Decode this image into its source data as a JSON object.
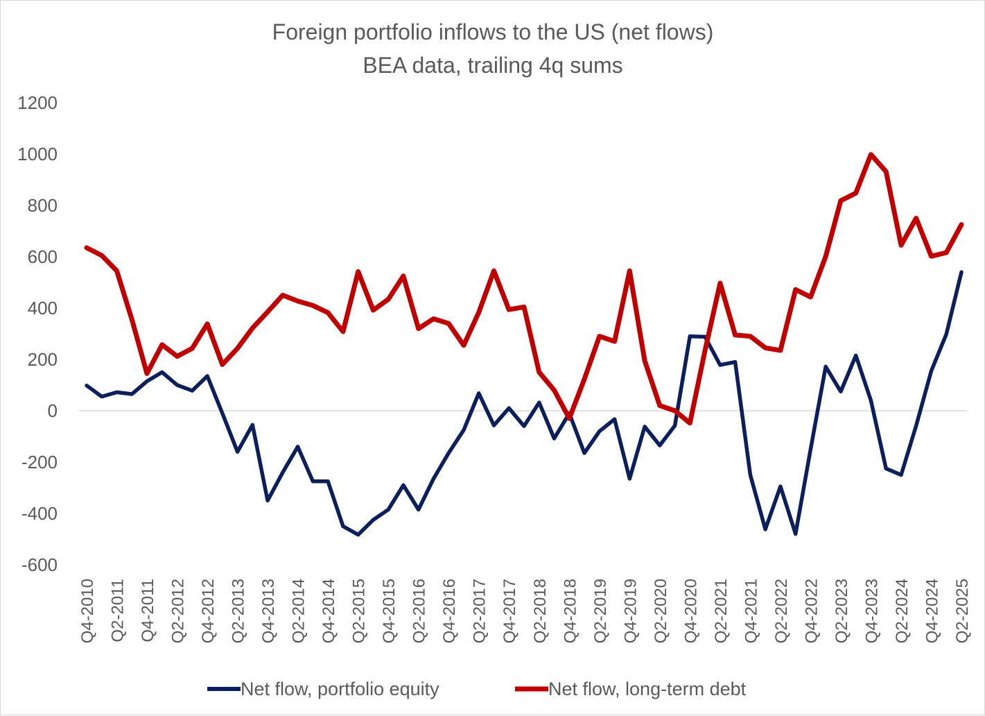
{
  "chart_data": {
    "type": "line",
    "title": "Foreign portfolio inflows to the US (net flows)",
    "subtitle": "BEA data, trailing 4q sums",
    "xlabel": "",
    "ylabel": "",
    "ylim": [
      -600,
      1200
    ],
    "y_ticks": [
      1200,
      1000,
      800,
      600,
      400,
      200,
      0,
      -200,
      -400,
      -600
    ],
    "x_tick_labels": [
      "Q4-2010",
      "Q2-2011",
      "Q4-2011",
      "Q2-2012",
      "Q4-2012",
      "Q2-2013",
      "Q4-2013",
      "Q2-2014",
      "Q4-2014",
      "Q2-2015",
      "Q4-2015",
      "Q2-2016",
      "Q4-2016",
      "Q2-2017",
      "Q4-2017",
      "Q2-2018",
      "Q4-2018",
      "Q2-2019",
      "Q4-2019",
      "Q2-2020",
      "Q4-2020",
      "Q2-2021",
      "Q4-2021",
      "Q2-2022",
      "Q4-2022",
      "Q2-2023",
      "Q4-2023",
      "Q2-2024",
      "Q4-2024",
      "Q2-2025"
    ],
    "x": [
      "Q4-2010",
      "Q1-2011",
      "Q2-2011",
      "Q3-2011",
      "Q4-2011",
      "Q1-2012",
      "Q2-2012",
      "Q3-2012",
      "Q4-2012",
      "Q1-2013",
      "Q2-2013",
      "Q3-2013",
      "Q4-2013",
      "Q1-2014",
      "Q2-2014",
      "Q3-2014",
      "Q4-2014",
      "Q1-2015",
      "Q2-2015",
      "Q3-2015",
      "Q4-2015",
      "Q1-2016",
      "Q2-2016",
      "Q3-2016",
      "Q4-2016",
      "Q1-2017",
      "Q2-2017",
      "Q3-2017",
      "Q4-2017",
      "Q1-2018",
      "Q2-2018",
      "Q3-2018",
      "Q4-2018",
      "Q1-2019",
      "Q2-2019",
      "Q3-2019",
      "Q4-2019",
      "Q1-2020",
      "Q2-2020",
      "Q3-2020",
      "Q4-2020",
      "Q1-2021",
      "Q2-2021",
      "Q3-2021",
      "Q4-2021",
      "Q1-2022",
      "Q2-2022",
      "Q3-2022",
      "Q4-2022",
      "Q1-2023",
      "Q2-2023",
      "Q3-2023",
      "Q4-2023",
      "Q1-2024",
      "Q2-2024",
      "Q3-2024",
      "Q4-2024",
      "Q1-2025",
      "Q2-2025"
    ],
    "legend_position": "bottom",
    "series": [
      {
        "name": "Net flow, portfolio equity",
        "color": "#0b1f5c",
        "values": [
          98,
          55,
          72,
          65,
          115,
          150,
          100,
          78,
          135,
          -10,
          -160,
          -55,
          -350,
          -240,
          -140,
          -275,
          -275,
          -450,
          -483,
          -425,
          -385,
          -290,
          -385,
          -265,
          -165,
          -75,
          68,
          -57,
          10,
          -60,
          32,
          -108,
          -10,
          -165,
          -80,
          -33,
          -265,
          -62,
          -135,
          -58,
          290,
          288,
          178,
          190,
          -250,
          -462,
          -295,
          -480,
          -150,
          172,
          75,
          215,
          40,
          -225,
          -250,
          -58,
          155,
          298,
          540
        ]
      },
      {
        "name": "Net flow, long-term debt",
        "color": "#c00000",
        "values": [
          635,
          605,
          545,
          355,
          145,
          257,
          212,
          243,
          338,
          180,
          243,
          322,
          385,
          450,
          427,
          410,
          382,
          308,
          542,
          392,
          434,
          525,
          320,
          358,
          340,
          255,
          383,
          545,
          394,
          404,
          150,
          80,
          -30,
          123,
          290,
          270,
          545,
          195,
          20,
          0,
          -48,
          235,
          497,
          295,
          290,
          245,
          235,
          472,
          443,
          601,
          818,
          848,
          998,
          932,
          645,
          750,
          602,
          616,
          725
        ]
      }
    ]
  }
}
